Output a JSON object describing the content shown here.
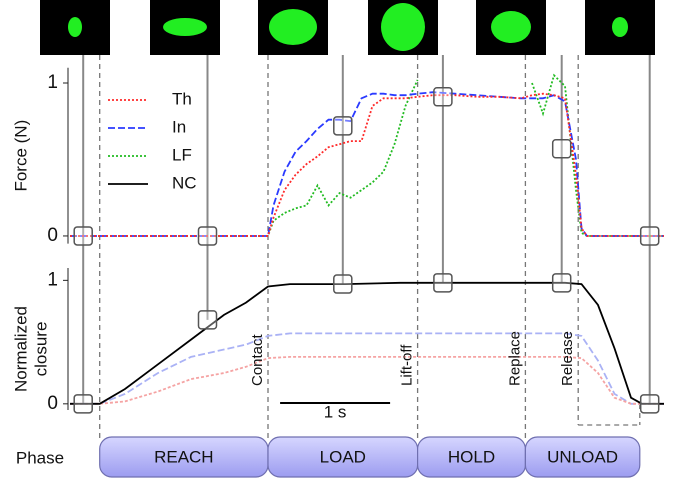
{
  "chart_data": [
    {
      "type": "line",
      "ylabel": "Force (N)",
      "xlim": [
        0,
        5.4
      ],
      "ylim": [
        -0.05,
        1.1
      ],
      "yticks": [
        0,
        1
      ],
      "x": [
        0,
        0.5,
        1.0,
        1.5,
        1.8,
        1.85,
        1.95,
        2.05,
        2.15,
        2.25,
        2.35,
        2.45,
        2.55,
        2.65,
        2.75,
        2.85,
        2.95,
        3.05,
        3.16,
        3.3,
        3.5,
        3.7,
        3.9,
        4.1,
        4.2,
        4.3,
        4.4,
        4.5,
        4.6,
        4.65,
        4.7,
        4.8,
        5.0,
        5.4
      ],
      "series": [
        {
          "name": "Th",
          "color": "#ff2a2a",
          "values": [
            0,
            0,
            0,
            0,
            0,
            0.12,
            0.3,
            0.4,
            0.47,
            0.52,
            0.58,
            0.6,
            0.62,
            0.62,
            0.85,
            0.9,
            0.9,
            0.9,
            0.91,
            0.92,
            0.92,
            0.91,
            0.91,
            0.9,
            0.92,
            0.93,
            0.92,
            0.9,
            0.4,
            0.05,
            0,
            0,
            0,
            0
          ]
        },
        {
          "name": "In",
          "color": "#2a3aff",
          "values": [
            0,
            0,
            0,
            0,
            0,
            0.2,
            0.42,
            0.55,
            0.62,
            0.7,
            0.76,
            0.76,
            0.75,
            0.9,
            0.93,
            0.93,
            0.92,
            0.92,
            0.93,
            0.94,
            0.93,
            0.92,
            0.91,
            0.9,
            0.9,
            0.9,
            0.92,
            0.88,
            0.5,
            0.05,
            0,
            0,
            0,
            0
          ]
        },
        {
          "name": "LF",
          "color": "#22bb22",
          "values": [
            0,
            0,
            0,
            0,
            0,
            0.1,
            0.15,
            0.18,
            0.2,
            0.33,
            0.2,
            0.28,
            0.25,
            0.3,
            0.35,
            0.42,
            0.6,
            0.85,
            1.02,
            null,
            null,
            null,
            null,
            null,
            1.0,
            0.8,
            1.05,
            0.98,
            0.3,
            0.02,
            0,
            0,
            0,
            0
          ]
        }
      ]
    },
    {
      "type": "line",
      "ylabel": [
        "Normalized",
        "closure"
      ],
      "xlim": [
        0,
        5.4
      ],
      "ylim": [
        -0.05,
        1.1
      ],
      "yticks": [
        0,
        1
      ],
      "x": [
        0,
        0.27,
        0.5,
        0.8,
        1.1,
        1.4,
        1.6,
        1.8,
        2.0,
        2.5,
        3.0,
        3.5,
        4.0,
        4.5,
        4.65,
        4.8,
        4.95,
        5.1,
        5.2,
        5.4
      ],
      "series": [
        {
          "name": "NC",
          "color": "#000000",
          "values": [
            0,
            0,
            0.12,
            0.32,
            0.52,
            0.72,
            0.82,
            0.95,
            0.97,
            0.97,
            0.98,
            0.98,
            0.98,
            0.98,
            0.97,
            0.8,
            0.45,
            0.05,
            0,
            0
          ]
        },
        {
          "name": "Th",
          "color": "#f5a3a3",
          "values": [
            0,
            0,
            0.02,
            0.1,
            0.2,
            0.25,
            0.3,
            0.37,
            0.38,
            0.38,
            0.38,
            0.38,
            0.38,
            0.38,
            0.37,
            0.25,
            0.05,
            0,
            0,
            0
          ]
        },
        {
          "name": "In",
          "color": "#aab2f5",
          "values": [
            0,
            0,
            0.08,
            0.25,
            0.38,
            0.44,
            0.48,
            0.55,
            0.57,
            0.57,
            0.57,
            0.57,
            0.57,
            0.57,
            0.55,
            0.35,
            0.08,
            0,
            0,
            0
          ]
        }
      ]
    }
  ],
  "snapshots": [
    {
      "x": 0.12,
      "force": 0,
      "closure": 0
    },
    {
      "x": 1.25,
      "force": 0,
      "closure": 0.68
    },
    {
      "x": 2.48,
      "force": 0.72,
      "closure": 0.97
    },
    {
      "x": 3.39,
      "force": 0.91,
      "closure": 0.98
    },
    {
      "x": 4.47,
      "force": 0.57,
      "closure": 0.98
    },
    {
      "x": 5.27,
      "force": 0,
      "closure": 0
    }
  ],
  "events": [
    {
      "x": 1.8,
      "label": "Contact"
    },
    {
      "x": 3.16,
      "label": "Lift-off"
    },
    {
      "x": 4.14,
      "label": "Replace"
    },
    {
      "x": 4.62,
      "label": "Release"
    }
  ],
  "phase_label": "Phase",
  "phases": [
    {
      "label": "REACH",
      "start": 0.27,
      "end": 1.8
    },
    {
      "label": "LOAD",
      "start": 1.8,
      "end": 3.16
    },
    {
      "label": "HOLD",
      "start": 3.16,
      "end": 4.14
    },
    {
      "label": "UNLOAD",
      "start": 4.14,
      "end": 5.18
    }
  ],
  "scale_bar": {
    "label": "1 s",
    "length": 1
  }
}
